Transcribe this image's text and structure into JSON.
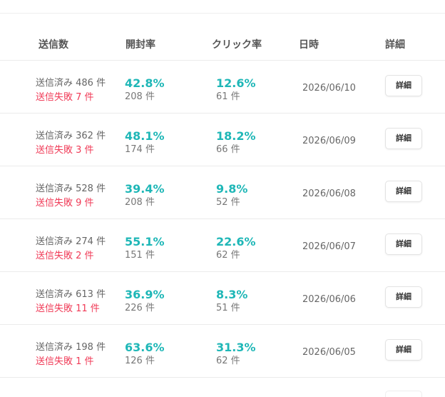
{
  "table": {
    "headers": {
      "sent": "送信数",
      "open_rate": "開封率",
      "click_rate": "クリック率",
      "datetime": "日時",
      "detail": "詳細"
    },
    "rows": [
      {
        "sent": "送信済み 486 件",
        "failed": "送信失敗 7 件",
        "open_rate": "42.8%",
        "open_count": "208 件",
        "click_rate": "12.6%",
        "click_count": "61 件",
        "date": "2026/06/10",
        "detail": "詳細"
      },
      {
        "sent": "送信済み 362 件",
        "failed": "送信失敗 3 件",
        "open_rate": "48.1%",
        "open_count": "174 件",
        "click_rate": "18.2%",
        "click_count": "66 件",
        "date": "2026/06/09",
        "detail": "詳細"
      },
      {
        "sent": "送信済み 528 件",
        "failed": "送信失敗 9 件",
        "open_rate": "39.4%",
        "open_count": "208 件",
        "click_rate": "9.8%",
        "click_count": "52 件",
        "date": "2026/06/08",
        "detail": "詳細"
      },
      {
        "sent": "送信済み 274 件",
        "failed": "送信失敗 2 件",
        "open_rate": "55.1%",
        "open_count": "151 件",
        "click_rate": "22.6%",
        "click_count": "62 件",
        "date": "2026/06/07",
        "detail": "詳細"
      },
      {
        "sent": "送信済み 613 件",
        "failed": "送信失敗 11 件",
        "open_rate": "36.9%",
        "open_count": "226 件",
        "click_rate": "8.3%",
        "click_count": "51 件",
        "date": "2026/06/06",
        "detail": "詳細"
      },
      {
        "sent": "送信済み 198 件",
        "failed": "送信失敗 1 件",
        "open_rate": "63.6%",
        "open_count": "126 件",
        "click_rate": "31.3%",
        "click_count": "62 件",
        "date": "2026/06/05",
        "detail": "詳細"
      }
    ]
  },
  "colors": {
    "accent_rate": "#1fb7b7",
    "failure": "#f03b57",
    "header_text": "#555555"
  }
}
